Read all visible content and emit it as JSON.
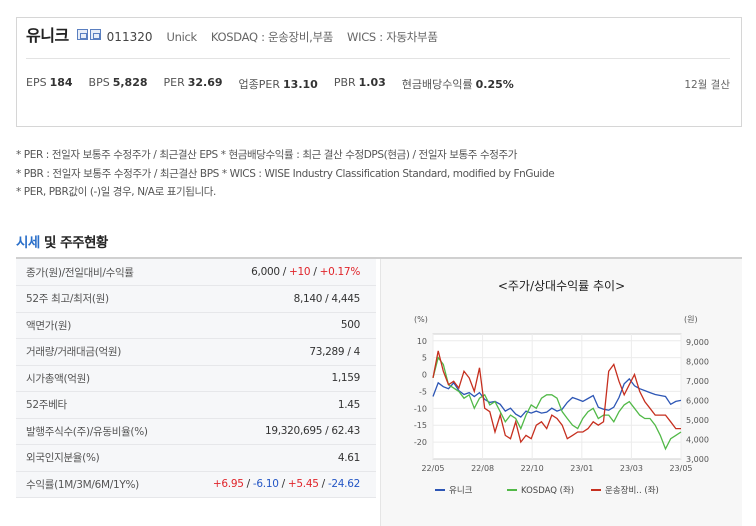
{
  "company": {
    "name": "유니크",
    "code": "011320",
    "english_name": "Unick",
    "market": "KOSDAQ : 운송장비,부품",
    "wics": "WICS : 자동차부품"
  },
  "stats": [
    {
      "label": "EPS",
      "value": "184"
    },
    {
      "label": "BPS",
      "value": "5,828"
    },
    {
      "label": "PER",
      "value": "32.69"
    },
    {
      "label": "업종PER",
      "value": "13.10"
    },
    {
      "label": "PBR",
      "value": "1.03"
    },
    {
      "label": "현금배당수익률",
      "value": "0.25%"
    }
  ],
  "settlement": "12월 결산",
  "notes": [
    "* PER : 전일자 보통주 수정주가 / 최근결산 EPS * 현금배당수익률 : 최근 결산 수정DPS(현금) / 전일자 보통주 수정주가",
    "* PBR : 전일자 보통주 수정주가 / 최근결산 BPS * WICS : WISE Industry Classification Standard, modified by FnGuide",
    "* PER, PBR값이 (-)일 경우, N/A로 표기됩니다."
  ],
  "section": {
    "title_accent": "시세",
    "title_rest": " 및 주주현황"
  },
  "quote": {
    "close_label": "종가(원)/전일대비/수익률",
    "close_price": "6,000",
    "close_change": "+10",
    "close_return": "+0.17%",
    "sep": " / ",
    "rows": [
      {
        "label": "52주 최고/최저(원)",
        "value": "8,140 / 4,445"
      },
      {
        "label": "액면가(원)",
        "value": "500"
      },
      {
        "label": "거래량/거래대금(억원)",
        "value": "73,289 / 4"
      },
      {
        "label": "시가총액(억원)",
        "value": "1,159"
      },
      {
        "label": "52주베타",
        "value": "1.45"
      },
      {
        "label": "발행주식수(주)/유동비율(%)",
        "value": "19,320,695 / 62.43"
      },
      {
        "label": "외국인지분율(%)",
        "value": "4.61"
      }
    ],
    "returns_label": "수익률(1M/3M/6M/1Y%)",
    "returns": [
      "+6.95",
      "-6.10",
      "+5.45",
      "-24.62"
    ]
  },
  "chart_data": {
    "type": "line",
    "title": "<주가/상대수익률 추이>",
    "left_unit": "(%)",
    "right_unit": "(원)",
    "x_ticks": [
      "22/05",
      "22/08",
      "22/10",
      "23/01",
      "23/03",
      "23/05"
    ],
    "y_left_ticks": [
      10,
      5,
      0,
      -5,
      -10,
      -15,
      -20
    ],
    "y_left_range": [
      -25,
      12
    ],
    "y_right_ticks": [
      "9,000",
      "8,000",
      "7,000",
      "6,000",
      "5,000",
      "4,000",
      "3,000"
    ],
    "y_right_range": [
      3000,
      9400
    ],
    "grid": true,
    "legend_position": "bottom",
    "series": [
      {
        "name": "유니크",
        "axis": "right",
        "color": "#2d56b5",
        "values": [
          6200,
          6900,
          6700,
          6600,
          6900,
          6500,
          6300,
          6400,
          6200,
          6400,
          6050,
          5900,
          5950,
          5800,
          5450,
          5600,
          5300,
          5150,
          5450,
          5350,
          5450,
          5350,
          5400,
          5600,
          5450,
          5550,
          5900,
          6150,
          6050,
          5950,
          6100,
          6250,
          5650,
          5550,
          5500,
          5650,
          6150,
          6850,
          7100,
          6750,
          6600,
          6500,
          6400,
          6300,
          6250,
          6200,
          5800,
          5950,
          6000
        ]
      },
      {
        "name": "KOSDAQ (좌)",
        "axis": "left",
        "color": "#52b948",
        "values": [
          -1,
          5,
          3,
          -3,
          -4,
          -5,
          -7,
          -6,
          -10,
          -7,
          -6,
          -9,
          -8,
          -11,
          -14,
          -12,
          -13,
          -16,
          -12,
          -9,
          -10,
          -7,
          -6,
          -6,
          -7,
          -11,
          -13,
          -15,
          -16,
          -13,
          -11,
          -10,
          -13,
          -12,
          -12,
          -14,
          -11,
          -9,
          -8,
          -10,
          -12,
          -13,
          -13,
          -15,
          -18,
          -22,
          -19,
          -18,
          -17
        ]
      },
      {
        "name": "운송장비.. (좌)",
        "axis": "left",
        "color": "#c62f1f",
        "values": [
          -1,
          7,
          1,
          -3,
          -2,
          -4,
          1,
          -1,
          -5,
          2,
          -10,
          -11,
          -17,
          -12,
          -18,
          -19,
          -14,
          -20,
          -18,
          -19,
          -15,
          -14,
          -16,
          -12,
          -13,
          -15,
          -19,
          -18,
          -17,
          -17,
          -16,
          -14,
          -15,
          -14,
          1,
          3,
          -2,
          -6,
          -3,
          0,
          -5,
          -8,
          -10,
          -12,
          -12,
          -12,
          -14,
          -16,
          -16
        ]
      }
    ]
  }
}
